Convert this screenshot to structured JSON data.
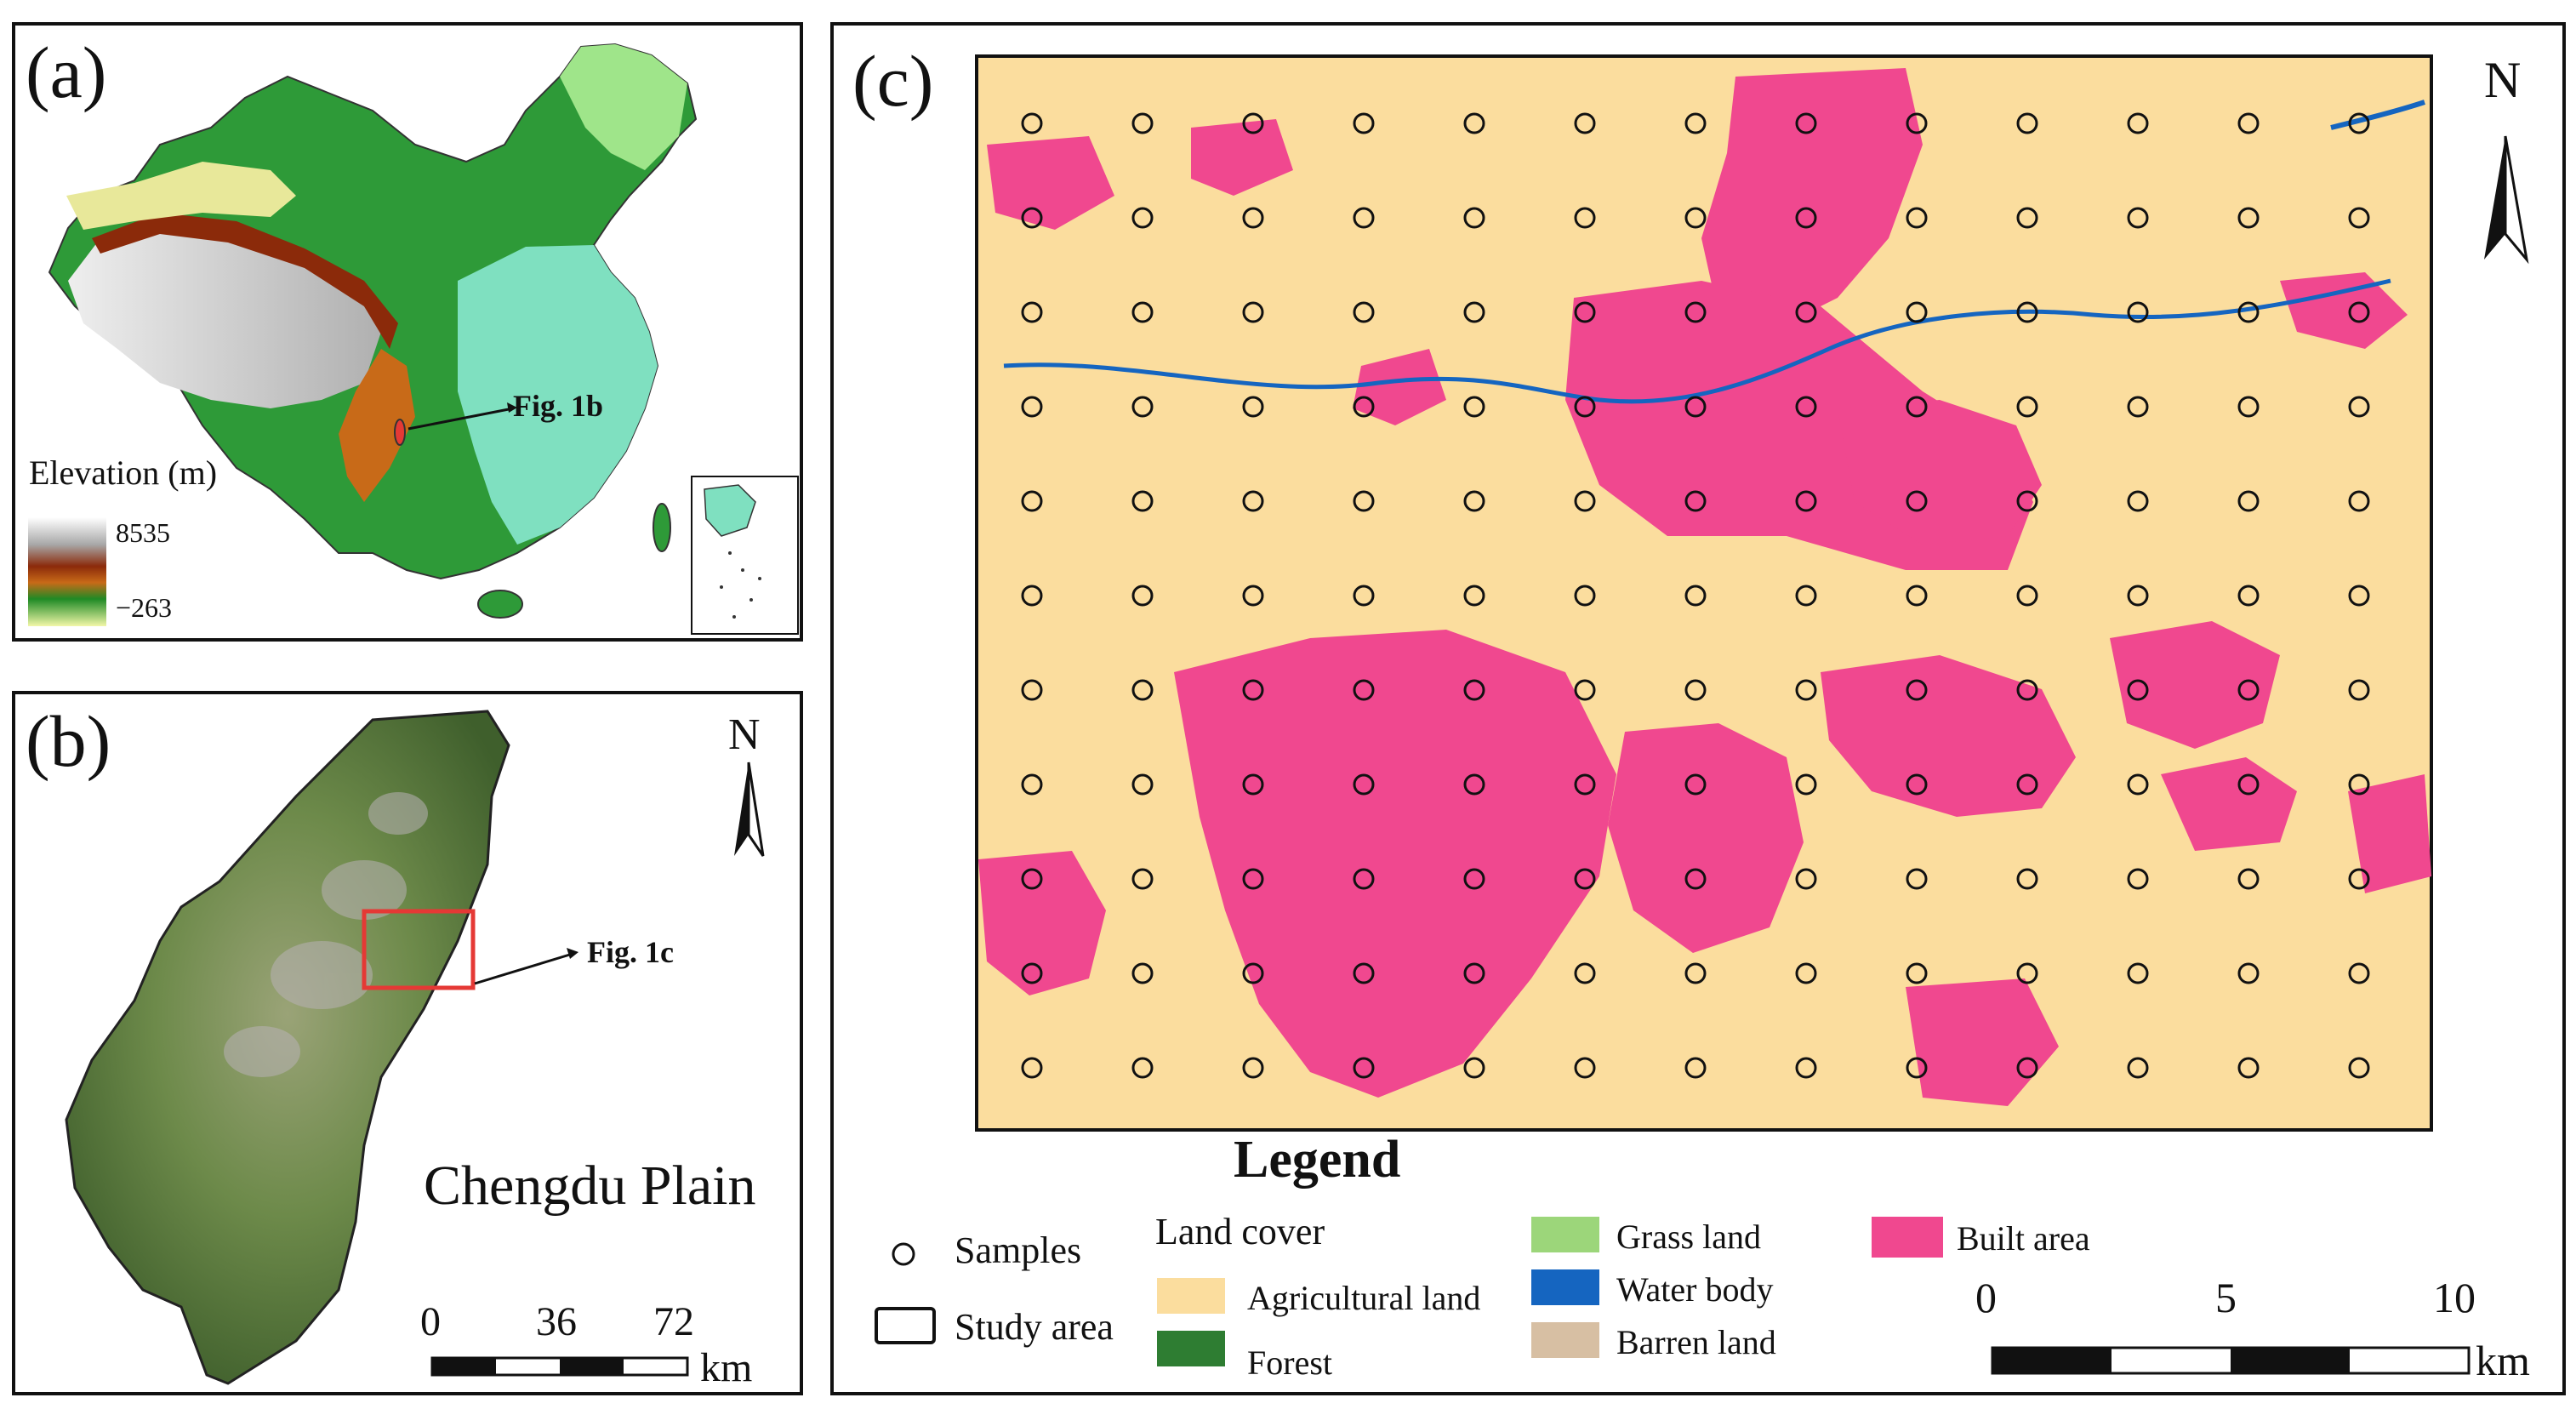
{
  "panel_a": {
    "label": "(a)",
    "elevation_title": "Elevation (m)",
    "elevation_max": "8535",
    "elevation_min": "−263",
    "callout": "Fig. 1b"
  },
  "panel_b": {
    "label": "(b)",
    "north": "N",
    "callout": "Fig. 1c",
    "place_name": "Chengdu Plain",
    "scale": {
      "ticks": [
        "0",
        "36",
        "72"
      ],
      "unit": "km"
    }
  },
  "panel_c": {
    "label": "(c)",
    "north": "N",
    "legend": {
      "title": "Legend",
      "samples": "Samples",
      "study_area": "Study area",
      "land_cover_title": "Land cover",
      "classes": [
        {
          "name": "Agricultural land",
          "color": "#FBDD9E"
        },
        {
          "name": "Forest",
          "color": "#2E7D32"
        },
        {
          "name": "Grass land",
          "color": "#9CD67A"
        },
        {
          "name": "Water body",
          "color": "#1565C0"
        },
        {
          "name": "Barren land",
          "color": "#D7BFA3"
        },
        {
          "name": "Built area",
          "color": "#F0488F"
        }
      ]
    },
    "scale": {
      "ticks": [
        "0",
        "5",
        "10"
      ],
      "unit": "km"
    }
  }
}
